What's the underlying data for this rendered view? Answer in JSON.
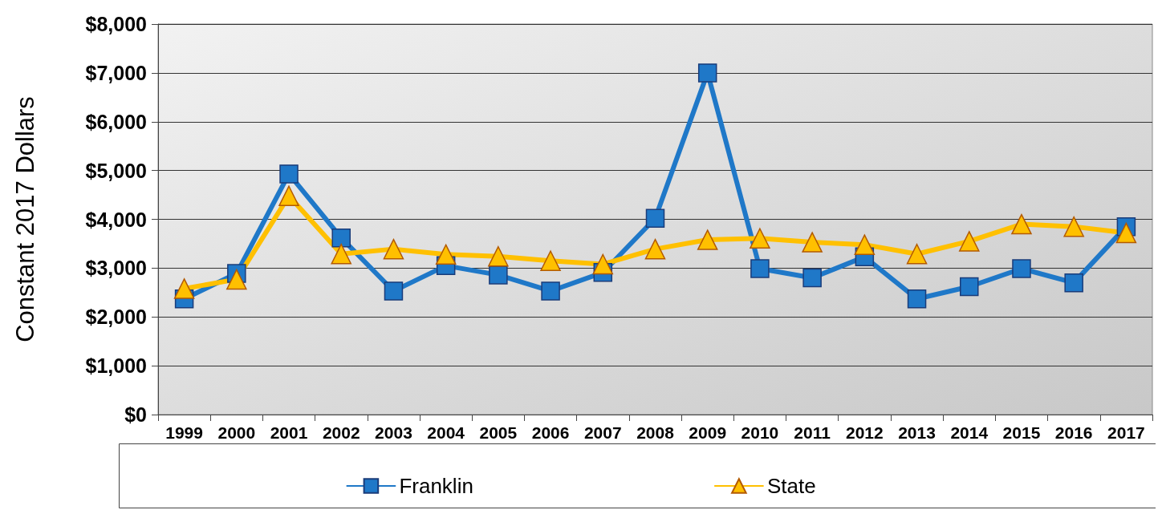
{
  "chart_data": {
    "type": "line",
    "ylabel": "Constant 2017 Dollars",
    "categories": [
      "1999",
      "2000",
      "2001",
      "2002",
      "2003",
      "2004",
      "2005",
      "2006",
      "2007",
      "2008",
      "2009",
      "2010",
      "2011",
      "2012",
      "2013",
      "2014",
      "2015",
      "2016",
      "2017"
    ],
    "series": [
      {
        "name": "Franklin",
        "color": "#1f78c8",
        "marker": "square",
        "values": [
          2370,
          2890,
          4930,
          3620,
          2530,
          3050,
          2860,
          2530,
          2910,
          4020,
          7000,
          2990,
          2800,
          3230,
          2370,
          2620,
          2990,
          2700,
          3850
        ]
      },
      {
        "name": "State",
        "color": "#ffc000",
        "marker": "triangle",
        "values": [
          2580,
          2770,
          4480,
          3290,
          3390,
          3280,
          3240,
          3150,
          3080,
          3390,
          3580,
          3610,
          3530,
          3480,
          3290,
          3550,
          3900,
          3850,
          3720
        ]
      }
    ],
    "ylim": [
      0,
      8000
    ],
    "yticks": [
      {
        "value": 0,
        "label": "$0"
      },
      {
        "value": 1000,
        "label": "$1,000"
      },
      {
        "value": 2000,
        "label": "$2,000"
      },
      {
        "value": 3000,
        "label": "$3,000"
      },
      {
        "value": 4000,
        "label": "$4,000"
      },
      {
        "value": 5000,
        "label": "$5,000"
      },
      {
        "value": 6000,
        "label": "$6,000"
      },
      {
        "value": 7000,
        "label": "$7,000"
      },
      {
        "value": 8000,
        "label": "$8,000"
      }
    ],
    "grid": "y",
    "legend": "bottom",
    "line_style": "solid"
  }
}
